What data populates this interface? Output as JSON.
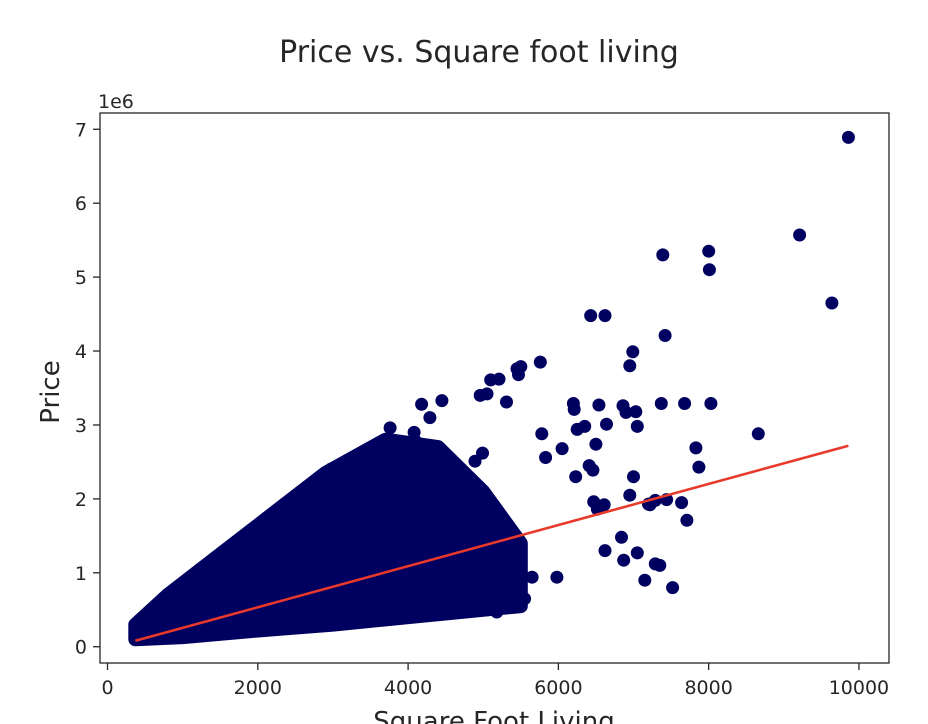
{
  "chart_data": {
    "type": "scatter",
    "title": "Price vs. Square foot living",
    "xlabel": "Square Foot Living",
    "ylabel": "Price",
    "y_offset_label": "1e6",
    "xlim": [
      -100,
      10400
    ],
    "ylim": [
      -0.22,
      7.22
    ],
    "x_ticks": [
      0,
      2000,
      4000,
      6000,
      8000,
      10000
    ],
    "x_tick_labels": [
      "0",
      "2000",
      "4000",
      "6000",
      "8000",
      "10000"
    ],
    "y_ticks": [
      0,
      1,
      2,
      3,
      4,
      5,
      6,
      7
    ],
    "y_tick_labels": [
      "0",
      "1",
      "2",
      "3",
      "4",
      "5",
      "6",
      "7"
    ],
    "grid": false,
    "point_color": "#000060",
    "line_color": "#e8392a",
    "series": [
      {
        "kind": "points",
        "x": [
          9860,
          9210,
          9640,
          7390,
          8000,
          8010,
          6430,
          6620,
          7420,
          6990,
          6950,
          5760,
          5450,
          5500,
          5470,
          5100,
          4960,
          6200,
          6210,
          6540,
          6350,
          6500,
          6410,
          6460,
          6860,
          6900,
          7030,
          7050,
          7370,
          7680,
          8030,
          7830,
          7870,
          8660,
          6640,
          6250,
          6050,
          5780,
          5830,
          6230,
          6470,
          6520,
          6610,
          7000,
          6950,
          7200,
          7290,
          7440,
          7640,
          7220,
          7710,
          6840,
          6870,
          6620,
          7050,
          7290,
          7150,
          7350,
          7520,
          5980,
          5650,
          5550,
          5490,
          5180,
          5190,
          4700,
          4640,
          4870,
          4570,
          4450,
          4180,
          4080,
          3760,
          3600,
          3350,
          2970,
          4290,
          4100,
          4330,
          4890,
          4990,
          5210,
          5050,
          5310
        ],
        "y": [
          6.89,
          5.57,
          4.65,
          5.3,
          5.35,
          5.1,
          4.48,
          4.48,
          4.21,
          3.99,
          3.8,
          3.85,
          3.76,
          3.79,
          3.68,
          3.61,
          3.4,
          3.29,
          3.21,
          3.27,
          2.98,
          2.74,
          2.45,
          2.39,
          3.26,
          3.17,
          3.18,
          2.98,
          3.29,
          3.29,
          3.29,
          2.69,
          2.43,
          2.88,
          3.01,
          2.94,
          2.68,
          2.88,
          2.56,
          2.3,
          1.96,
          1.86,
          1.92,
          2.3,
          2.05,
          1.93,
          1.98,
          1.99,
          1.95,
          1.92,
          1.71,
          1.48,
          1.17,
          1.3,
          1.27,
          1.12,
          0.9,
          1.1,
          0.8,
          0.94,
          0.94,
          0.65,
          0.56,
          0.47,
          0.59,
          0.7,
          0.75,
          0.82,
          0.92,
          3.33,
          3.28,
          2.9,
          2.96,
          2.38,
          2.55,
          2.4,
          3.1,
          2.78,
          2.65,
          2.51,
          2.62,
          3.62,
          3.42,
          3.31
        ]
      },
      {
        "kind": "line",
        "x": [
          370,
          9860
        ],
        "y": [
          0.08,
          2.72
        ]
      }
    ]
  }
}
